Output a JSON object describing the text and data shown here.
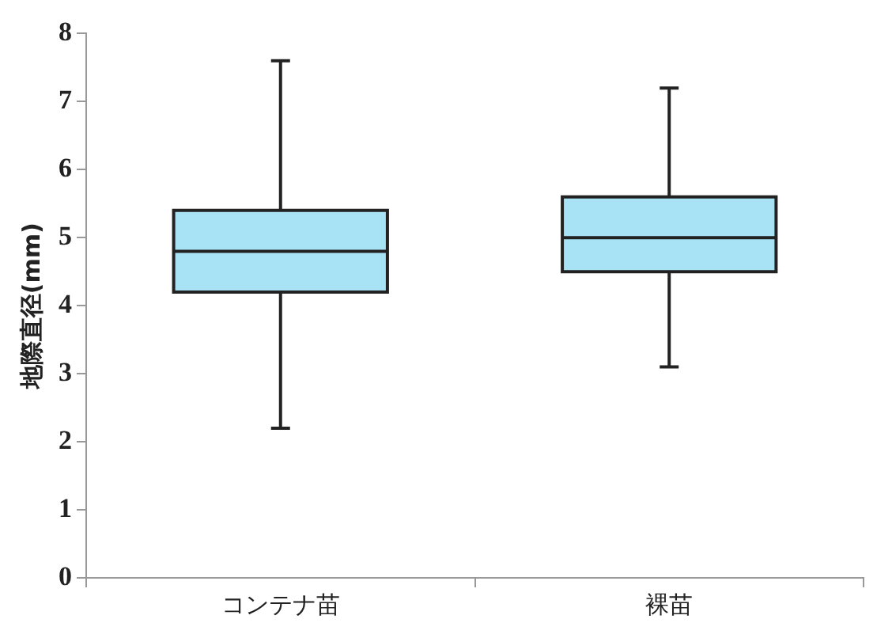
{
  "chart_data": {
    "type": "box",
    "ylabel": "地際直径(mm)",
    "categories": [
      "コンテナ苗",
      "裸苗"
    ],
    "color": "#a8e2f5",
    "ylim": [
      0,
      8
    ],
    "yticks": [
      0,
      1,
      2,
      3,
      4,
      5,
      6,
      7,
      8
    ],
    "grid": false,
    "boxes": [
      {
        "low": 2.2,
        "q1": 4.2,
        "median": 4.8,
        "q3": 5.4,
        "high": 7.6
      },
      {
        "low": 3.1,
        "q1": 4.5,
        "median": 5.0,
        "q3": 5.6,
        "high": 7.2
      }
    ]
  }
}
